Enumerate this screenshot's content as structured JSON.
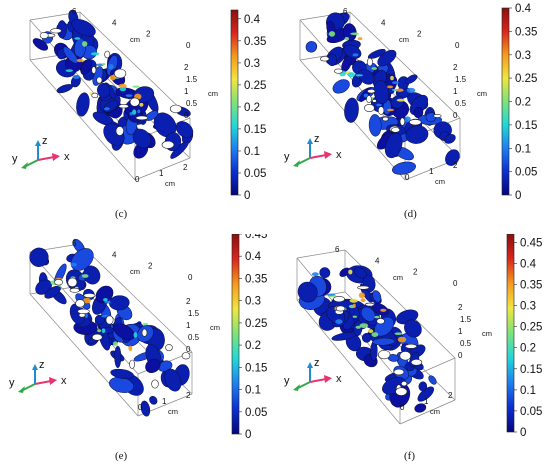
{
  "panels": [
    {
      "caption": "(c)",
      "colorbar": {
        "ticks": [
          "0.4",
          "0.35",
          "0.3",
          "0.25",
          "0.2",
          "0.15",
          "0.1",
          "0.05",
          "0"
        ],
        "values": [
          0.4,
          0.35,
          0.3,
          0.25,
          0.2,
          0.15,
          0.1,
          0.05,
          0
        ],
        "max": 0.42
      },
      "axes": {
        "top_ticks": [
          "6",
          "4",
          "2",
          "0"
        ],
        "top_unit": "cm",
        "side_ticks": [
          "2",
          "1.5",
          "1",
          "0.5",
          "0"
        ],
        "side_unit": "cm",
        "bottom_ticks": [
          "0",
          "1",
          "2"
        ],
        "bottom_unit": "cm"
      }
    },
    {
      "caption": "(d)",
      "colorbar": {
        "ticks": [
          "0.4",
          "0.35",
          "0.3",
          "0.25",
          "0.2",
          "0.15",
          "0.1",
          "0.05",
          "0"
        ],
        "values": [
          0.4,
          0.35,
          0.3,
          0.25,
          0.2,
          0.15,
          0.1,
          0.05,
          0
        ],
        "max": 0.4
      },
      "axes": {
        "top_ticks": [
          "6",
          "4",
          "2",
          "0"
        ],
        "top_unit": "cm",
        "side_ticks": [
          "2",
          "1.5",
          "1",
          "0.5",
          "0"
        ],
        "side_unit": "cm",
        "bottom_ticks": [
          "0",
          "1",
          "2"
        ],
        "bottom_unit": "cm"
      }
    },
    {
      "caption": "(e)",
      "colorbar": {
        "ticks": [
          "0.45",
          "0.4",
          "0.35",
          "0.3",
          "0.25",
          "0.2",
          "0.15",
          "0.1",
          "0.05",
          "0"
        ],
        "values": [
          0.45,
          0.4,
          0.35,
          0.3,
          0.25,
          0.2,
          0.15,
          0.1,
          0.05,
          0
        ],
        "max": 0.45
      },
      "axes": {
        "top_ticks": [
          "6",
          "4",
          "2",
          "0"
        ],
        "top_unit": "cm",
        "side_ticks": [
          "2",
          "1.5",
          "1",
          "0.5",
          "0"
        ],
        "side_unit": "cm",
        "bottom_ticks": [
          "0",
          "1",
          "2"
        ],
        "bottom_unit": "cm"
      }
    },
    {
      "caption": "(f)",
      "colorbar": {
        "ticks": [
          "0.45",
          "0.4",
          "0.35",
          "0.3",
          "0.25",
          "0.2",
          "0.15",
          "0.1",
          "0.05",
          "0"
        ],
        "values": [
          0.45,
          0.4,
          0.35,
          0.3,
          0.25,
          0.2,
          0.15,
          0.1,
          0.05,
          0
        ],
        "max": 0.47
      },
      "axes": {
        "top_ticks": [
          "6",
          "4",
          "2",
          "0"
        ],
        "top_unit": "cm",
        "side_ticks": [
          "2",
          "1.5",
          "1",
          "0.5",
          "0"
        ],
        "side_unit": "cm",
        "bottom_ticks": [
          "0",
          "1",
          "2"
        ],
        "bottom_unit": "cm"
      }
    }
  ],
  "triad": {
    "z": "z",
    "y": "y",
    "x": "x"
  },
  "colors": {
    "x_arrow": "#e8336e",
    "y_arrow": "#2eaa46",
    "z_arrow": "#1e8ccf",
    "colormap": [
      "#05057a",
      "#0b2fd1",
      "#1f7ff0",
      "#20d8d8",
      "#7de37a",
      "#f0e640",
      "#f59a1f",
      "#d9261c",
      "#8a0f0f"
    ]
  }
}
